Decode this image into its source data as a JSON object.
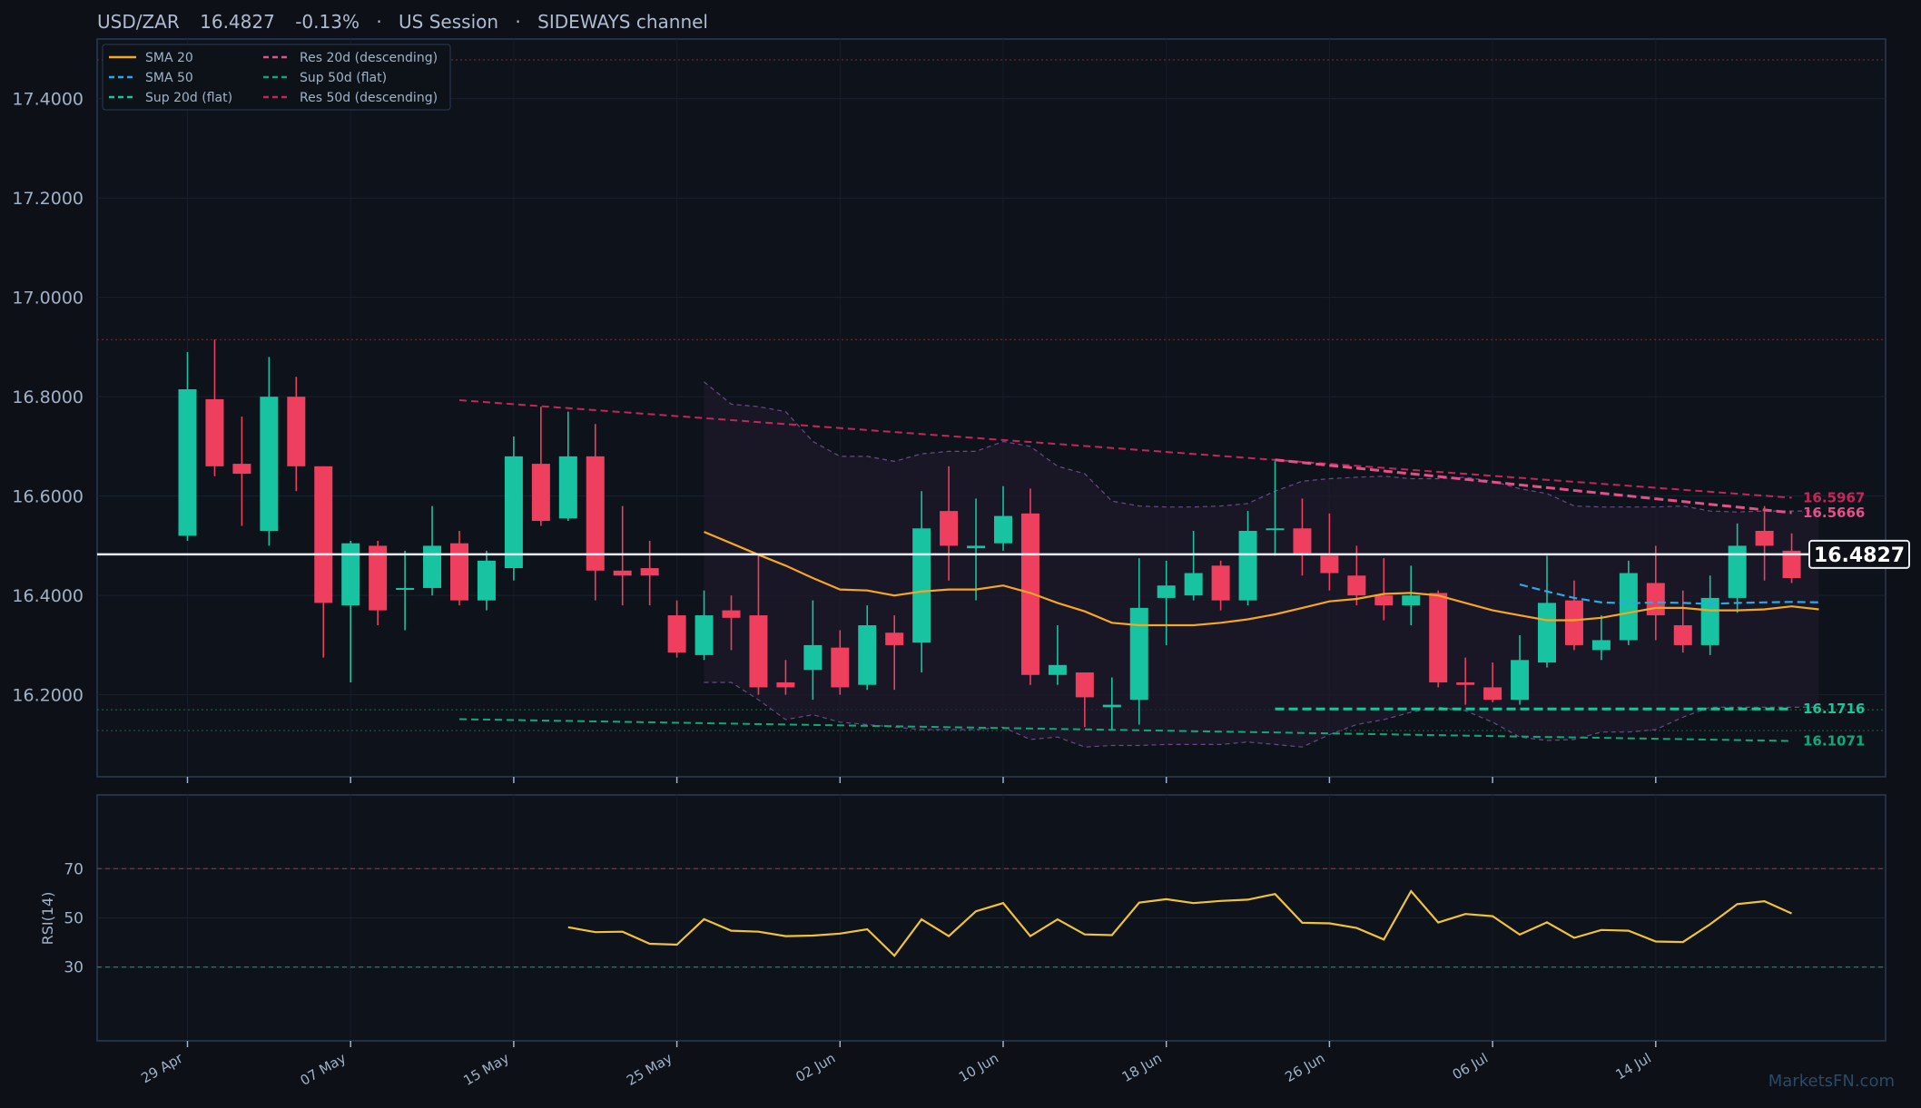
{
  "header": {
    "symbol": "USD/ZAR",
    "price": "16.4827",
    "change": "-0.13%",
    "session": "US Session",
    "channel": "SIDEWAYS channel",
    "separator": "·"
  },
  "watermark": "MarketsFN.com",
  "colors": {
    "background": "#0d1017",
    "panel": "#0e121a",
    "border": "#2a3b55",
    "up": "#17c3a1",
    "down": "#ee3f5f",
    "sma20": "#f5a623",
    "sma50": "#29a9e6",
    "res20": "#e6508a",
    "res50": "#c4265a",
    "sup20": "#14c89a",
    "sup50": "#11a878",
    "rsi": "#f0c23a",
    "text": "#9fb2c8"
  },
  "chart_data": [
    {
      "type": "candlestick",
      "title": "USD/ZAR 16.4827 -0.13% · US Session · SIDEWAYS channel",
      "ylim": [
        16.035,
        17.52
      ],
      "yticks": [
        "16.2000",
        "16.4000",
        "16.6000",
        "16.8000",
        "17.0000",
        "17.2000",
        "17.4000"
      ],
      "ytick_values": [
        16.2,
        16.4,
        16.6,
        16.8,
        17.0,
        17.2,
        17.4
      ],
      "xticks": [
        "29 Apr",
        "07 May",
        "15 May",
        "25 May",
        "02 Jun",
        "10 Jun",
        "18 Jun",
        "26 Jun",
        "06 Jul",
        "14 Jul"
      ],
      "xtick_index": [
        0,
        6,
        12,
        18,
        24,
        30,
        36,
        42,
        48,
        54
      ],
      "current_price": 16.4827,
      "current_price_label": "16.4827",
      "candles": [
        {
          "o": 16.52,
          "h": 16.89,
          "l": 16.51,
          "c": 16.815
        },
        {
          "o": 16.795,
          "h": 16.915,
          "l": 16.64,
          "c": 16.66
        },
        {
          "o": 16.665,
          "h": 16.76,
          "l": 16.54,
          "c": 16.645
        },
        {
          "o": 16.53,
          "h": 16.88,
          "l": 16.5,
          "c": 16.8
        },
        {
          "o": 16.8,
          "h": 16.84,
          "l": 16.61,
          "c": 16.66
        },
        {
          "o": 16.66,
          "h": 16.66,
          "l": 16.275,
          "c": 16.385
        },
        {
          "o": 16.38,
          "h": 16.51,
          "l": 16.225,
          "c": 16.505
        },
        {
          "o": 16.5,
          "h": 16.51,
          "l": 16.34,
          "c": 16.37
        },
        {
          "o": 16.415,
          "h": 16.49,
          "l": 16.33,
          "c": 16.415
        },
        {
          "o": 16.415,
          "h": 16.58,
          "l": 16.4,
          "c": 16.5
        },
        {
          "o": 16.505,
          "h": 16.53,
          "l": 16.38,
          "c": 16.39
        },
        {
          "o": 16.39,
          "h": 16.49,
          "l": 16.37,
          "c": 16.47
        },
        {
          "o": 16.455,
          "h": 16.72,
          "l": 16.43,
          "c": 16.68
        },
        {
          "o": 16.665,
          "h": 16.78,
          "l": 16.54,
          "c": 16.55
        },
        {
          "o": 16.555,
          "h": 16.77,
          "l": 16.55,
          "c": 16.68
        },
        {
          "o": 16.68,
          "h": 16.745,
          "l": 16.39,
          "c": 16.45
        },
        {
          "o": 16.45,
          "h": 16.58,
          "l": 16.38,
          "c": 16.44
        },
        {
          "o": 16.455,
          "h": 16.51,
          "l": 16.38,
          "c": 16.44
        },
        {
          "o": 16.36,
          "h": 16.39,
          "l": 16.275,
          "c": 16.285
        },
        {
          "o": 16.28,
          "h": 16.41,
          "l": 16.27,
          "c": 16.36
        },
        {
          "o": 16.37,
          "h": 16.4,
          "l": 16.29,
          "c": 16.355
        },
        {
          "o": 16.36,
          "h": 16.48,
          "l": 16.2,
          "c": 16.215
        },
        {
          "o": 16.225,
          "h": 16.27,
          "l": 16.2,
          "c": 16.215
        },
        {
          "o": 16.25,
          "h": 16.39,
          "l": 16.19,
          "c": 16.3
        },
        {
          "o": 16.295,
          "h": 16.33,
          "l": 16.2,
          "c": 16.215
        },
        {
          "o": 16.22,
          "h": 16.38,
          "l": 16.21,
          "c": 16.34
        },
        {
          "o": 16.325,
          "h": 16.36,
          "l": 16.21,
          "c": 16.3
        },
        {
          "o": 16.305,
          "h": 16.61,
          "l": 16.245,
          "c": 16.535
        },
        {
          "o": 16.57,
          "h": 16.66,
          "l": 16.43,
          "c": 16.5
        },
        {
          "o": 16.495,
          "h": 16.595,
          "l": 16.39,
          "c": 16.5
        },
        {
          "o": 16.505,
          "h": 16.62,
          "l": 16.49,
          "c": 16.56
        },
        {
          "o": 16.565,
          "h": 16.615,
          "l": 16.22,
          "c": 16.24
        },
        {
          "o": 16.24,
          "h": 16.34,
          "l": 16.22,
          "c": 16.26
        },
        {
          "o": 16.245,
          "h": 16.245,
          "l": 16.135,
          "c": 16.195
        },
        {
          "o": 16.175,
          "h": 16.235,
          "l": 16.13,
          "c": 16.18
        },
        {
          "o": 16.19,
          "h": 16.475,
          "l": 16.14,
          "c": 16.375
        },
        {
          "o": 16.395,
          "h": 16.47,
          "l": 16.3,
          "c": 16.42
        },
        {
          "o": 16.4,
          "h": 16.53,
          "l": 16.39,
          "c": 16.445
        },
        {
          "o": 16.46,
          "h": 16.47,
          "l": 16.37,
          "c": 16.39
        },
        {
          "o": 16.39,
          "h": 16.57,
          "l": 16.38,
          "c": 16.53
        },
        {
          "o": 16.535,
          "h": 16.67,
          "l": 16.48,
          "c": 16.535
        },
        {
          "o": 16.535,
          "h": 16.595,
          "l": 16.44,
          "c": 16.485
        },
        {
          "o": 16.48,
          "h": 16.565,
          "l": 16.41,
          "c": 16.445
        },
        {
          "o": 16.44,
          "h": 16.5,
          "l": 16.38,
          "c": 16.4
        },
        {
          "o": 16.4,
          "h": 16.475,
          "l": 16.35,
          "c": 16.38
        },
        {
          "o": 16.38,
          "h": 16.46,
          "l": 16.34,
          "c": 16.4
        },
        {
          "o": 16.405,
          "h": 16.41,
          "l": 16.215,
          "c": 16.225
        },
        {
          "o": 16.225,
          "h": 16.275,
          "l": 16.18,
          "c": 16.22
        },
        {
          "o": 16.215,
          "h": 16.265,
          "l": 16.185,
          "c": 16.19
        },
        {
          "o": 16.19,
          "h": 16.32,
          "l": 16.18,
          "c": 16.27
        },
        {
          "o": 16.265,
          "h": 16.48,
          "l": 16.255,
          "c": 16.385
        },
        {
          "o": 16.39,
          "h": 16.43,
          "l": 16.29,
          "c": 16.3
        },
        {
          "o": 16.29,
          "h": 16.36,
          "l": 16.27,
          "c": 16.31
        },
        {
          "o": 16.31,
          "h": 16.47,
          "l": 16.3,
          "c": 16.445
        },
        {
          "o": 16.425,
          "h": 16.5,
          "l": 16.31,
          "c": 16.36
        },
        {
          "o": 16.34,
          "h": 16.41,
          "l": 16.285,
          "c": 16.3
        },
        {
          "o": 16.3,
          "h": 16.44,
          "l": 16.28,
          "c": 16.395
        },
        {
          "o": 16.395,
          "h": 16.545,
          "l": 16.365,
          "c": 16.5
        },
        {
          "o": 16.53,
          "h": 16.58,
          "l": 16.43,
          "c": 16.5
        },
        {
          "o": 16.49,
          "h": 16.525,
          "l": 16.425,
          "c": 16.435
        }
      ],
      "sma20": {
        "start": 19,
        "values": [
          16.528,
          16.505,
          16.482,
          16.46,
          16.435,
          16.412,
          16.41,
          16.4,
          16.408,
          16.412,
          16.412,
          16.42,
          16.405,
          16.385,
          16.368,
          16.345,
          16.34,
          16.34,
          16.34,
          16.345,
          16.352,
          16.362,
          16.375,
          16.388,
          16.393,
          16.403,
          16.405,
          16.4,
          16.385,
          16.37,
          16.36,
          16.35,
          16.35,
          16.355,
          16.365,
          16.375,
          16.375,
          16.37,
          16.37,
          16.372,
          16.378,
          16.372
        ]
      },
      "sma50": {
        "start": 49,
        "values": [
          16.422,
          16.408,
          16.395,
          16.386,
          16.384,
          16.386,
          16.385,
          16.383,
          16.385,
          16.386,
          16.387,
          16.386
        ]
      },
      "res20": {
        "start": 40,
        "from": 16.673,
        "to": 16.5666,
        "label": "16.5666"
      },
      "res50": {
        "start": 10,
        "from": 16.793,
        "to": 16.5967,
        "label": "16.5967"
      },
      "sup20": {
        "start": 40,
        "from": 16.1716,
        "to": 16.1716,
        "label": "16.1716"
      },
      "sup50": {
        "start": 10,
        "from": 16.151,
        "to": 16.1071,
        "label": "16.1071"
      },
      "channel_band": {
        "start": 19,
        "upper": [
          16.83,
          16.785,
          16.78,
          16.77,
          16.71,
          16.68,
          16.68,
          16.67,
          16.685,
          16.69,
          16.69,
          16.71,
          16.7,
          16.66,
          16.645,
          16.59,
          16.58,
          16.578,
          16.578,
          16.58,
          16.585,
          16.61,
          16.63,
          16.635,
          16.638,
          16.64,
          16.635,
          16.635,
          16.638,
          16.63,
          16.615,
          16.605,
          16.58,
          16.578,
          16.578,
          16.578,
          16.58,
          16.57,
          16.568,
          16.57,
          16.57,
          16.57
        ],
        "lower": [
          16.225,
          16.225,
          16.19,
          16.15,
          16.16,
          16.145,
          16.14,
          16.135,
          16.13,
          16.13,
          16.13,
          16.135,
          16.11,
          16.115,
          16.095,
          16.098,
          16.098,
          16.1,
          16.1,
          16.1,
          16.105,
          16.1,
          16.095,
          16.12,
          16.14,
          16.15,
          16.165,
          16.175,
          16.168,
          16.145,
          16.115,
          16.108,
          16.11,
          16.125,
          16.125,
          16.13,
          16.155,
          16.175,
          16.175,
          16.175,
          16.175,
          16.175
        ]
      },
      "hlines": [
        17.478,
        16.915,
        16.17,
        16.128
      ],
      "legend": {
        "placement": "top-left",
        "entries": [
          {
            "label": "SMA 20",
            "style": "solid",
            "color": "#f5a623"
          },
          {
            "label": "SMA 50",
            "style": "dashed",
            "color": "#29a9e6"
          },
          {
            "label": "Sup 20d (flat)",
            "style": "dashed",
            "color": "#14c89a"
          },
          {
            "label": "Res 20d (descending)",
            "style": "dashed",
            "color": "#e6508a"
          },
          {
            "label": "Sup 50d (flat)",
            "style": "dashed",
            "color": "#11a878"
          },
          {
            "label": "Res 50d (descending)",
            "style": "dashed",
            "color": "#c4265a"
          }
        ]
      }
    },
    {
      "type": "line",
      "ylabel": "RSI(14)",
      "ylim": [
        0,
        100
      ],
      "yticks": [
        "30",
        "50",
        "70"
      ],
      "ytick_values": [
        30,
        50,
        70
      ],
      "overbought": 70,
      "oversold": 30,
      "series": [
        {
          "start": 14,
          "values": [
            46.2,
            44.2,
            44.4,
            39.5,
            39.1,
            49.5,
            44.8,
            44.4,
            42.6,
            42.8,
            43.6,
            45.4,
            34.6,
            49.4,
            42.6,
            52.7,
            56.0,
            42.6,
            49.4,
            43.3,
            43.0,
            56.2,
            57.6,
            56.0,
            56.9,
            57.4,
            59.7,
            48.0,
            47.8,
            45.9,
            41.2,
            60.9,
            48.1,
            51.6,
            50.7,
            43.2,
            48.2,
            41.9,
            45.1,
            44.8,
            40.4,
            40.2,
            47.4,
            55.6,
            56.8,
            51.8
          ]
        }
      ]
    }
  ]
}
